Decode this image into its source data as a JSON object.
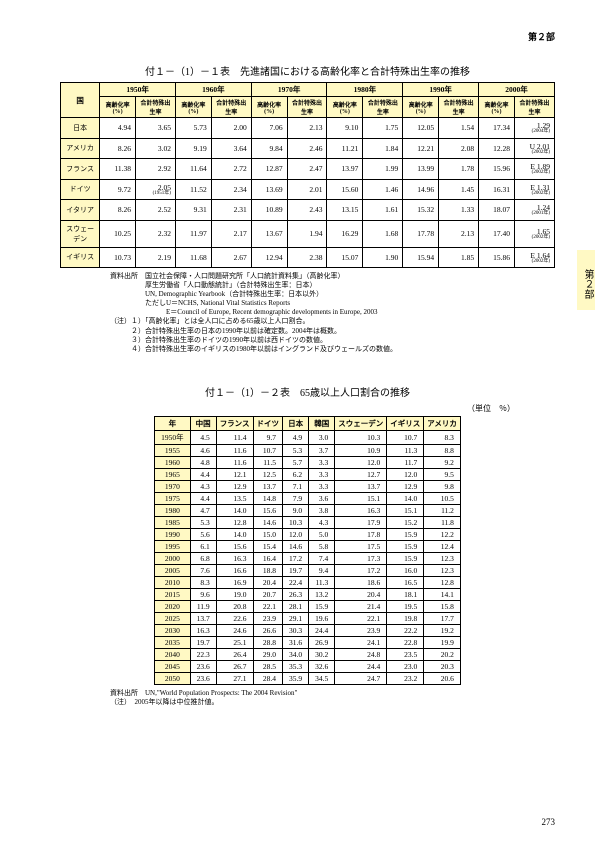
{
  "header": {
    "part": "第２部",
    "side_tab": "第２部"
  },
  "table1": {
    "title": "付１－（1）－１表　先進諸国における高齢化率と合計特殊出生率の推移",
    "year_cols": [
      "1950年",
      "1960年",
      "1970年",
      "1980年",
      "1990年",
      "2000年"
    ],
    "sub_cols": [
      "高齢化率(%)",
      "合計特殊出生率"
    ],
    "country_label": "国",
    "rows": [
      {
        "c": "日本",
        "v": [
          "4.94",
          "3.65",
          "5.73",
          "2.00",
          "7.06",
          "2.13",
          "9.10",
          "1.75",
          "12.05",
          "1.54",
          "17.34",
          "1.29"
        ],
        "n": "(2004年)"
      },
      {
        "c": "アメリカ",
        "v": [
          "8.26",
          "3.02",
          "9.19",
          "3.64",
          "9.84",
          "2.46",
          "11.21",
          "1.84",
          "12.21",
          "2.08",
          "12.28",
          "U 2.01"
        ],
        "n": "(2002年)"
      },
      {
        "c": "フランス",
        "v": [
          "11.38",
          "2.92",
          "11.64",
          "2.72",
          "12.87",
          "2.47",
          "13.97",
          "1.99",
          "13.99",
          "1.78",
          "15.96",
          "E 1.89"
        ],
        "n": "(2002年)"
      },
      {
        "c": "ドイツ",
        "v": [
          "9.72",
          "2.05",
          "11.52",
          "2.34",
          "13.69",
          "2.01",
          "15.60",
          "1.46",
          "14.96",
          "1.45",
          "16.31",
          "E 1.31"
        ],
        "n": "(2002年)"
      },
      {
        "c": "イタリア",
        "v": [
          "8.26",
          "2.52",
          "9.31",
          "2.31",
          "10.89",
          "2.43",
          "13.15",
          "1.61",
          "15.32",
          "1.33",
          "18.07",
          "1.24"
        ],
        "n": "(2001年)"
      },
      {
        "c": "スウェーデン",
        "v": [
          "10.25",
          "2.32",
          "11.97",
          "2.17",
          "13.67",
          "1.94",
          "16.29",
          "1.68",
          "17.78",
          "2.13",
          "17.40",
          "1.65"
        ],
        "n": "(2002年)"
      },
      {
        "c": "イギリス",
        "v": [
          "10.73",
          "2.19",
          "11.68",
          "2.67",
          "12.94",
          "2.38",
          "15.07",
          "1.90",
          "15.94",
          "1.85",
          "15.86",
          "E 1.64"
        ],
        "n": "(2002年)"
      }
    ],
    "germany_note": "(1951年)",
    "notes": [
      "資料出所　国立社会保障・人口問題研究所「人口統計資料集」（高齢化率）",
      "　　　　　厚生労働省「人口動態統計」（合計特殊出生率：日本）",
      "　　　　　UN, Demographic Yearbook（合計特殊出生率：日本以外）",
      "　　　　　ただしU＝NCHS, National Vital Statistics Reports",
      "　　　　　　　　E＝Council of Europe, Recent demographic developments in Europe, 2003",
      "（注）１）「高齢化率」とは全人口に占める65歳以上人口割合。",
      "　　　２）合計特殊出生率の日本の1990年以前は確定数。2004年は概数。",
      "　　　３）合計特殊出生率のドイツの1990年以前は西ドイツの数値。",
      "　　　４）合計特殊出生率のイギリスの1980年以前はイングランド及びウェールズの数値。"
    ]
  },
  "table2": {
    "title": "付１－（1）－２表　65歳以上人口割合の推移",
    "unit": "（単位　％）",
    "cols": [
      "年",
      "中国",
      "フランス",
      "ドイツ",
      "日本",
      "韓国",
      "スウェーデン",
      "イギリス",
      "アメリカ"
    ],
    "rows": [
      [
        "1950年",
        "4.5",
        "11.4",
        "9.7",
        "4.9",
        "3.0",
        "10.3",
        "10.7",
        "8.3"
      ],
      [
        "1955",
        "4.6",
        "11.6",
        "10.7",
        "5.3",
        "3.7",
        "10.9",
        "11.3",
        "8.8"
      ],
      [
        "1960",
        "4.8",
        "11.6",
        "11.5",
        "5.7",
        "3.3",
        "12.0",
        "11.7",
        "9.2"
      ],
      [
        "1965",
        "4.4",
        "12.1",
        "12.5",
        "6.2",
        "3.3",
        "12.7",
        "12.0",
        "9.5"
      ],
      [
        "1970",
        "4.3",
        "12.9",
        "13.7",
        "7.1",
        "3.3",
        "13.7",
        "12.9",
        "9.8"
      ],
      [
        "1975",
        "4.4",
        "13.5",
        "14.8",
        "7.9",
        "3.6",
        "15.1",
        "14.0",
        "10.5"
      ],
      [
        "1980",
        "4.7",
        "14.0",
        "15.6",
        "9.0",
        "3.8",
        "16.3",
        "15.1",
        "11.2"
      ],
      [
        "1985",
        "5.3",
        "12.8",
        "14.6",
        "10.3",
        "4.3",
        "17.9",
        "15.2",
        "11.8"
      ],
      [
        "1990",
        "5.6",
        "14.0",
        "15.0",
        "12.0",
        "5.0",
        "17.8",
        "15.9",
        "12.2"
      ],
      [
        "1995",
        "6.1",
        "15.6",
        "15.4",
        "14.6",
        "5.8",
        "17.5",
        "15.9",
        "12.4"
      ],
      [
        "2000",
        "6.8",
        "16.3",
        "16.4",
        "17.2",
        "7.4",
        "17.3",
        "15.9",
        "12.3"
      ],
      [
        "2005",
        "7.6",
        "16.6",
        "18.8",
        "19.7",
        "9.4",
        "17.2",
        "16.0",
        "12.3"
      ],
      [
        "2010",
        "8.3",
        "16.9",
        "20.4",
        "22.4",
        "11.3",
        "18.6",
        "16.5",
        "12.8"
      ],
      [
        "2015",
        "9.6",
        "19.0",
        "20.7",
        "26.3",
        "13.2",
        "20.4",
        "18.1",
        "14.1"
      ],
      [
        "2020",
        "11.9",
        "20.8",
        "22.1",
        "28.1",
        "15.9",
        "21.4",
        "19.5",
        "15.8"
      ],
      [
        "2025",
        "13.7",
        "22.6",
        "23.9",
        "29.1",
        "19.6",
        "22.1",
        "19.8",
        "17.7"
      ],
      [
        "2030",
        "16.3",
        "24.6",
        "26.6",
        "30.3",
        "24.4",
        "23.9",
        "22.2",
        "19.2"
      ],
      [
        "2035",
        "19.7",
        "25.1",
        "28.8",
        "31.6",
        "26.9",
        "24.1",
        "22.8",
        "19.9"
      ],
      [
        "2040",
        "22.3",
        "26.4",
        "29.0",
        "34.0",
        "30.2",
        "24.8",
        "23.5",
        "20.2"
      ],
      [
        "2045",
        "23.6",
        "26.7",
        "28.5",
        "35.3",
        "32.6",
        "24.4",
        "23.0",
        "20.3"
      ],
      [
        "2050",
        "23.6",
        "27.1",
        "28.4",
        "35.9",
        "34.5",
        "24.7",
        "23.2",
        "20.6"
      ]
    ],
    "sep_index": 11,
    "notes": [
      "資料出所　UN,\"World Population Prospects: The 2004 Revision\"",
      "（注）　2005年以降は中位推計値。"
    ]
  },
  "page_number": "273"
}
